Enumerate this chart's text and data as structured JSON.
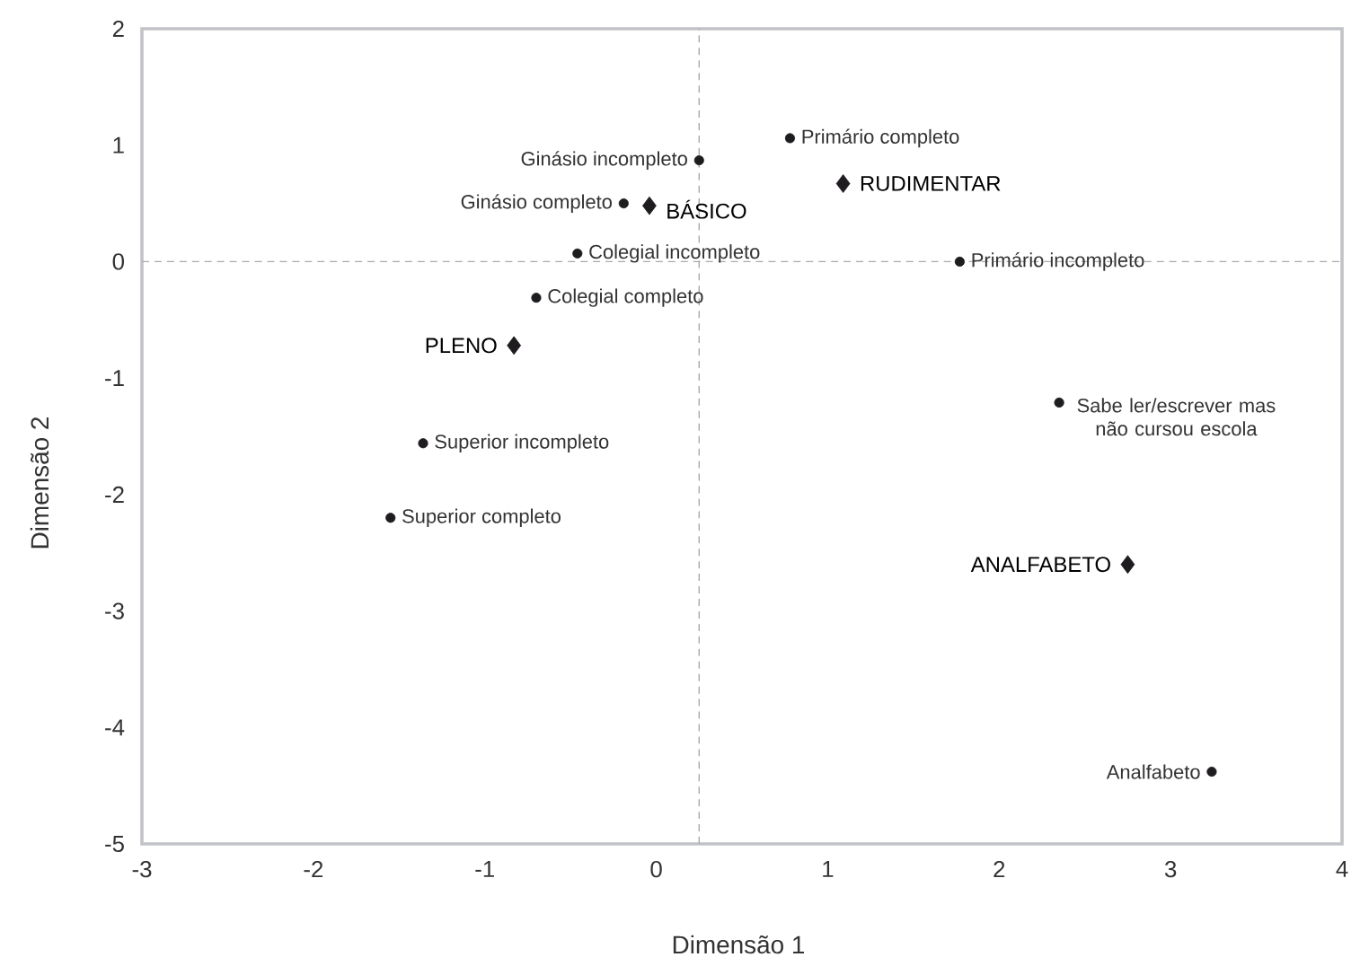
{
  "chart_data": {
    "type": "scatter",
    "xlabel": "Dimensão 1",
    "ylabel": "Dimensão 2",
    "xlim": [
      -3,
      4
    ],
    "ylim": [
      -5,
      2
    ],
    "xticks": [
      -3,
      -2,
      -1,
      0,
      1,
      2,
      3,
      4
    ],
    "yticks": [
      -5,
      -4,
      -3,
      -2,
      -1,
      0,
      1,
      2
    ],
    "series": [
      {
        "color": "#1e1c1f",
        "marker": "circle",
        "x": [
          0.25,
          -0.19,
          -0.46,
          -0.7,
          -1.36,
          -1.55,
          0.78,
          1.77,
          2.35,
          3.24
        ],
        "values": [
          0.87,
          0.5,
          0.07,
          -0.31,
          -1.56,
          -2.2,
          1.06,
          0.0,
          -1.21,
          -4.38
        ]
      },
      {
        "color": "#1e1c1f",
        "marker": "diamond",
        "x": [
          -0.04,
          -0.83,
          1.09,
          2.75
        ],
        "values": [
          0.48,
          -0.72,
          0.67,
          -2.6
        ]
      }
    ],
    "ref_lines": [
      {
        "axis": "x",
        "value": 0.25,
        "color": "#aaaaaa",
        "line_style": "dashed"
      },
      {
        "axis": "y",
        "value": 0,
        "color": "#aaaaaa",
        "line_style": "dashed"
      }
    ],
    "annotations": [
      {
        "text": "Ginásio incompleto",
        "x": 0.25,
        "y": 0.87
      },
      {
        "text": "Ginásio completo",
        "x": -0.19,
        "y": 0.5
      },
      {
        "text": "Colegial incompleto",
        "x": -0.46,
        "y": 0.07
      },
      {
        "text": "Colegial completo",
        "x": -0.7,
        "y": -0.31
      },
      {
        "text": "Superior incompleto",
        "x": -1.36,
        "y": -1.56
      },
      {
        "text": "Superior completo",
        "x": -1.55,
        "y": -2.2
      },
      {
        "text": "Primário completo",
        "x": 0.78,
        "y": 1.06
      },
      {
        "text": "Primário incompleto",
        "x": 1.77,
        "y": 0.0
      },
      {
        "text": "Sabe ler/escrever mas não cursou escola",
        "x": 2.35,
        "y": -1.21
      },
      {
        "text": "Analfabeto",
        "x": 3.24,
        "y": -4.38
      },
      {
        "text": "BÁSICO",
        "x": -0.04,
        "y": 0.48
      },
      {
        "text": "PLENO",
        "x": -0.83,
        "y": -0.72
      },
      {
        "text": "RUDIMENTAR",
        "x": 1.09,
        "y": 0.67
      },
      {
        "text": "ANALFABETO",
        "x": 2.75,
        "y": -2.6
      }
    ]
  }
}
